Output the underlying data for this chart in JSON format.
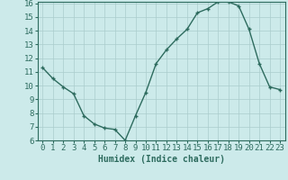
{
  "x": [
    0,
    1,
    2,
    3,
    4,
    5,
    6,
    7,
    8,
    9,
    10,
    11,
    12,
    13,
    14,
    15,
    16,
    17,
    18,
    19,
    20,
    21,
    22,
    23
  ],
  "y": [
    11.3,
    10.5,
    9.9,
    9.4,
    7.8,
    7.2,
    6.9,
    6.8,
    6.0,
    7.8,
    9.5,
    11.6,
    12.6,
    13.4,
    14.1,
    15.3,
    15.6,
    16.1,
    16.1,
    15.8,
    14.1,
    11.6,
    9.9,
    9.7
  ],
  "xlabel": "Humidex (Indice chaleur)",
  "ylim": [
    6,
    16
  ],
  "xlim": [
    -0.5,
    23.5
  ],
  "yticks": [
    6,
    7,
    8,
    9,
    10,
    11,
    12,
    13,
    14,
    15,
    16
  ],
  "xticks": [
    0,
    1,
    2,
    3,
    4,
    5,
    6,
    7,
    8,
    9,
    10,
    11,
    12,
    13,
    14,
    15,
    16,
    17,
    18,
    19,
    20,
    21,
    22,
    23
  ],
  "xtick_labels": [
    "0",
    "1",
    "2",
    "3",
    "4",
    "5",
    "6",
    "7",
    "8",
    "9",
    "10",
    "11",
    "12",
    "13",
    "14",
    "15",
    "16",
    "17",
    "18",
    "19",
    "20",
    "21",
    "22",
    "23"
  ],
  "line_color": "#2d6b5e",
  "marker": "+",
  "bg_color": "#cceaea",
  "grid_color": "#aacccc",
  "xlabel_fontsize": 7,
  "tick_fontsize": 6.5,
  "linewidth": 1.0,
  "markersize": 3.5,
  "markeredgewidth": 1.0
}
